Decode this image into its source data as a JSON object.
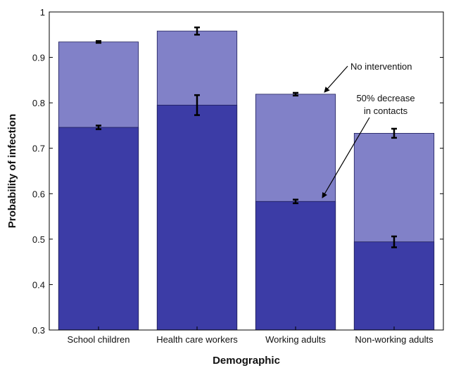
{
  "chart_data": {
    "type": "bar",
    "title": "",
    "xlabel": "Demographic",
    "ylabel": "Probability of infection",
    "ylim": [
      0.3,
      1.0
    ],
    "yticks": [
      0.3,
      0.4,
      0.5,
      0.6,
      0.7,
      0.8,
      0.9,
      1.0
    ],
    "ytick_labels": [
      "0.3",
      "0.4",
      "0.5",
      "0.6",
      "0.7",
      "0.8",
      "0.9",
      "1"
    ],
    "grid": false,
    "categories": [
      "School children",
      "Health care workers",
      "Working adults",
      "Non-working adults"
    ],
    "series": [
      {
        "values": [
          0.934,
          0.958,
          0.819,
          0.733
        ],
        "errors": [
          0.002,
          0.008,
          0.003,
          0.01
        ],
        "color": "#8181c8"
      },
      {
        "values": [
          0.746,
          0.795,
          0.583,
          0.494
        ],
        "errors": [
          0.004,
          0.022,
          0.004,
          0.012
        ],
        "color": "#3c3ca6"
      }
    ],
    "annotations": [
      {
        "text": "No intervention",
        "target_category": "Working adults",
        "target_value": 0.819
      },
      {
        "text": [
          "50% decrease",
          "in contacts"
        ],
        "target_category": "Working adults",
        "target_value": 0.583
      }
    ]
  }
}
